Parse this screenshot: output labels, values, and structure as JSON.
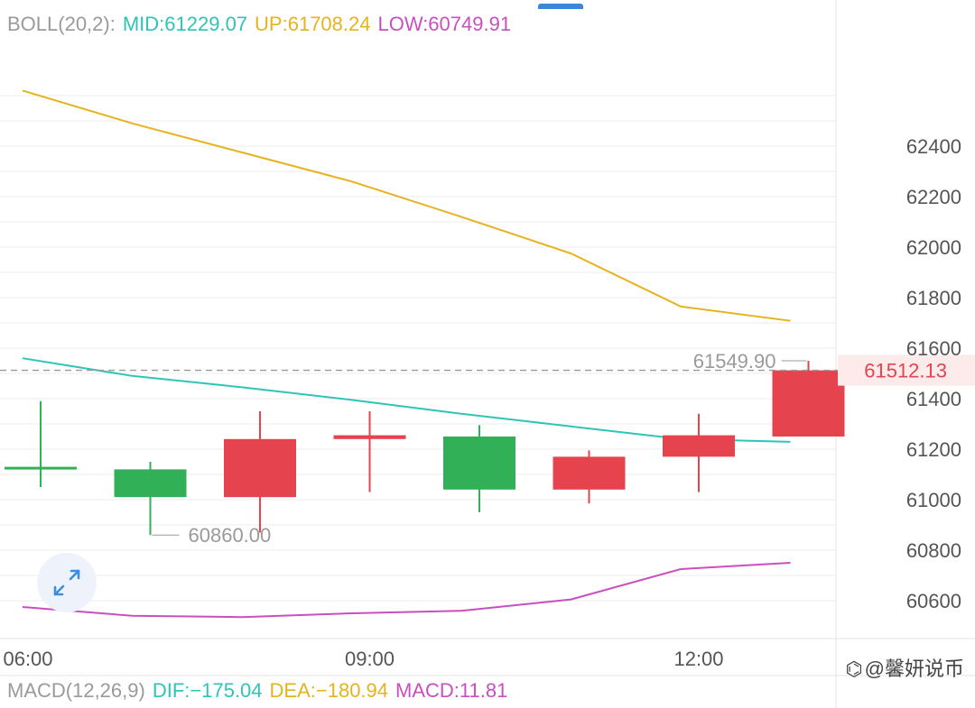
{
  "boll_legend": {
    "label": "BOLL(20,2):",
    "mid": "MID:61229.07",
    "up": "UP:61708.24",
    "low": "LOW:60749.91"
  },
  "macd_legend": {
    "label": "MACD(12,26,9)",
    "dif": "DIF:−175.04",
    "dea": "DEA:−180.94",
    "macd": "MACD:11.81"
  },
  "colors": {
    "mid": "#2ec4b6",
    "up": "#e6b31e",
    "low": "#c94fc0",
    "rise": "#e5444f",
    "fall": "#31b057",
    "label_gray": "#9a9a9a",
    "axis_text": "#555555",
    "grid": "#ececec"
  },
  "watermark": {
    "icon": "weibo-logo-icon",
    "text": "@馨妍说币"
  },
  "expand_button": {
    "icon": "expand-arrows-icon"
  },
  "chart_data": {
    "type": "candlestick",
    "x_labels": [
      "06:00",
      "09:00",
      "12:00"
    ],
    "x_label_index": [
      0,
      3,
      6
    ],
    "y_ticks": [
      60600,
      60800,
      61000,
      61200,
      61400,
      61600,
      61800,
      62000,
      62200,
      62400
    ],
    "ylim": [
      60480,
      62680
    ],
    "candles": [
      {
        "open": 61130,
        "close": 61130,
        "high": 61390,
        "low": 61050
      },
      {
        "open": 61120,
        "close": 61010,
        "high": 61150,
        "low": 60860
      },
      {
        "open": 61010,
        "close": 61240,
        "high": 61350,
        "low": 60870
      },
      {
        "open": 61240,
        "close": 61255,
        "high": 61350,
        "low": 61030
      },
      {
        "open": 61250,
        "close": 61040,
        "high": 61295,
        "low": 60950
      },
      {
        "open": 61040,
        "close": 61170,
        "high": 61195,
        "low": 60985
      },
      {
        "open": 61170,
        "close": 61255,
        "high": 61340,
        "low": 61030
      },
      {
        "open": 61250,
        "close": 61512.13,
        "high": 61549.9,
        "low": 61250
      }
    ],
    "boll": {
      "up": [
        62620,
        62490,
        62375,
        62260,
        62120,
        61975,
        61765,
        61708.24
      ],
      "mid": [
        61560,
        61490,
        61445,
        61395,
        61340,
        61290,
        61240,
        61229.07
      ],
      "low": [
        60575,
        60540,
        60535,
        60550,
        60560,
        60605,
        60725,
        60749.91
      ]
    },
    "current_price": "61512.13",
    "high_annotation": "61549.90",
    "low_annotation": "60860.00",
    "high_annotation_value": 61549.9,
    "low_annotation_value": 60860
  }
}
